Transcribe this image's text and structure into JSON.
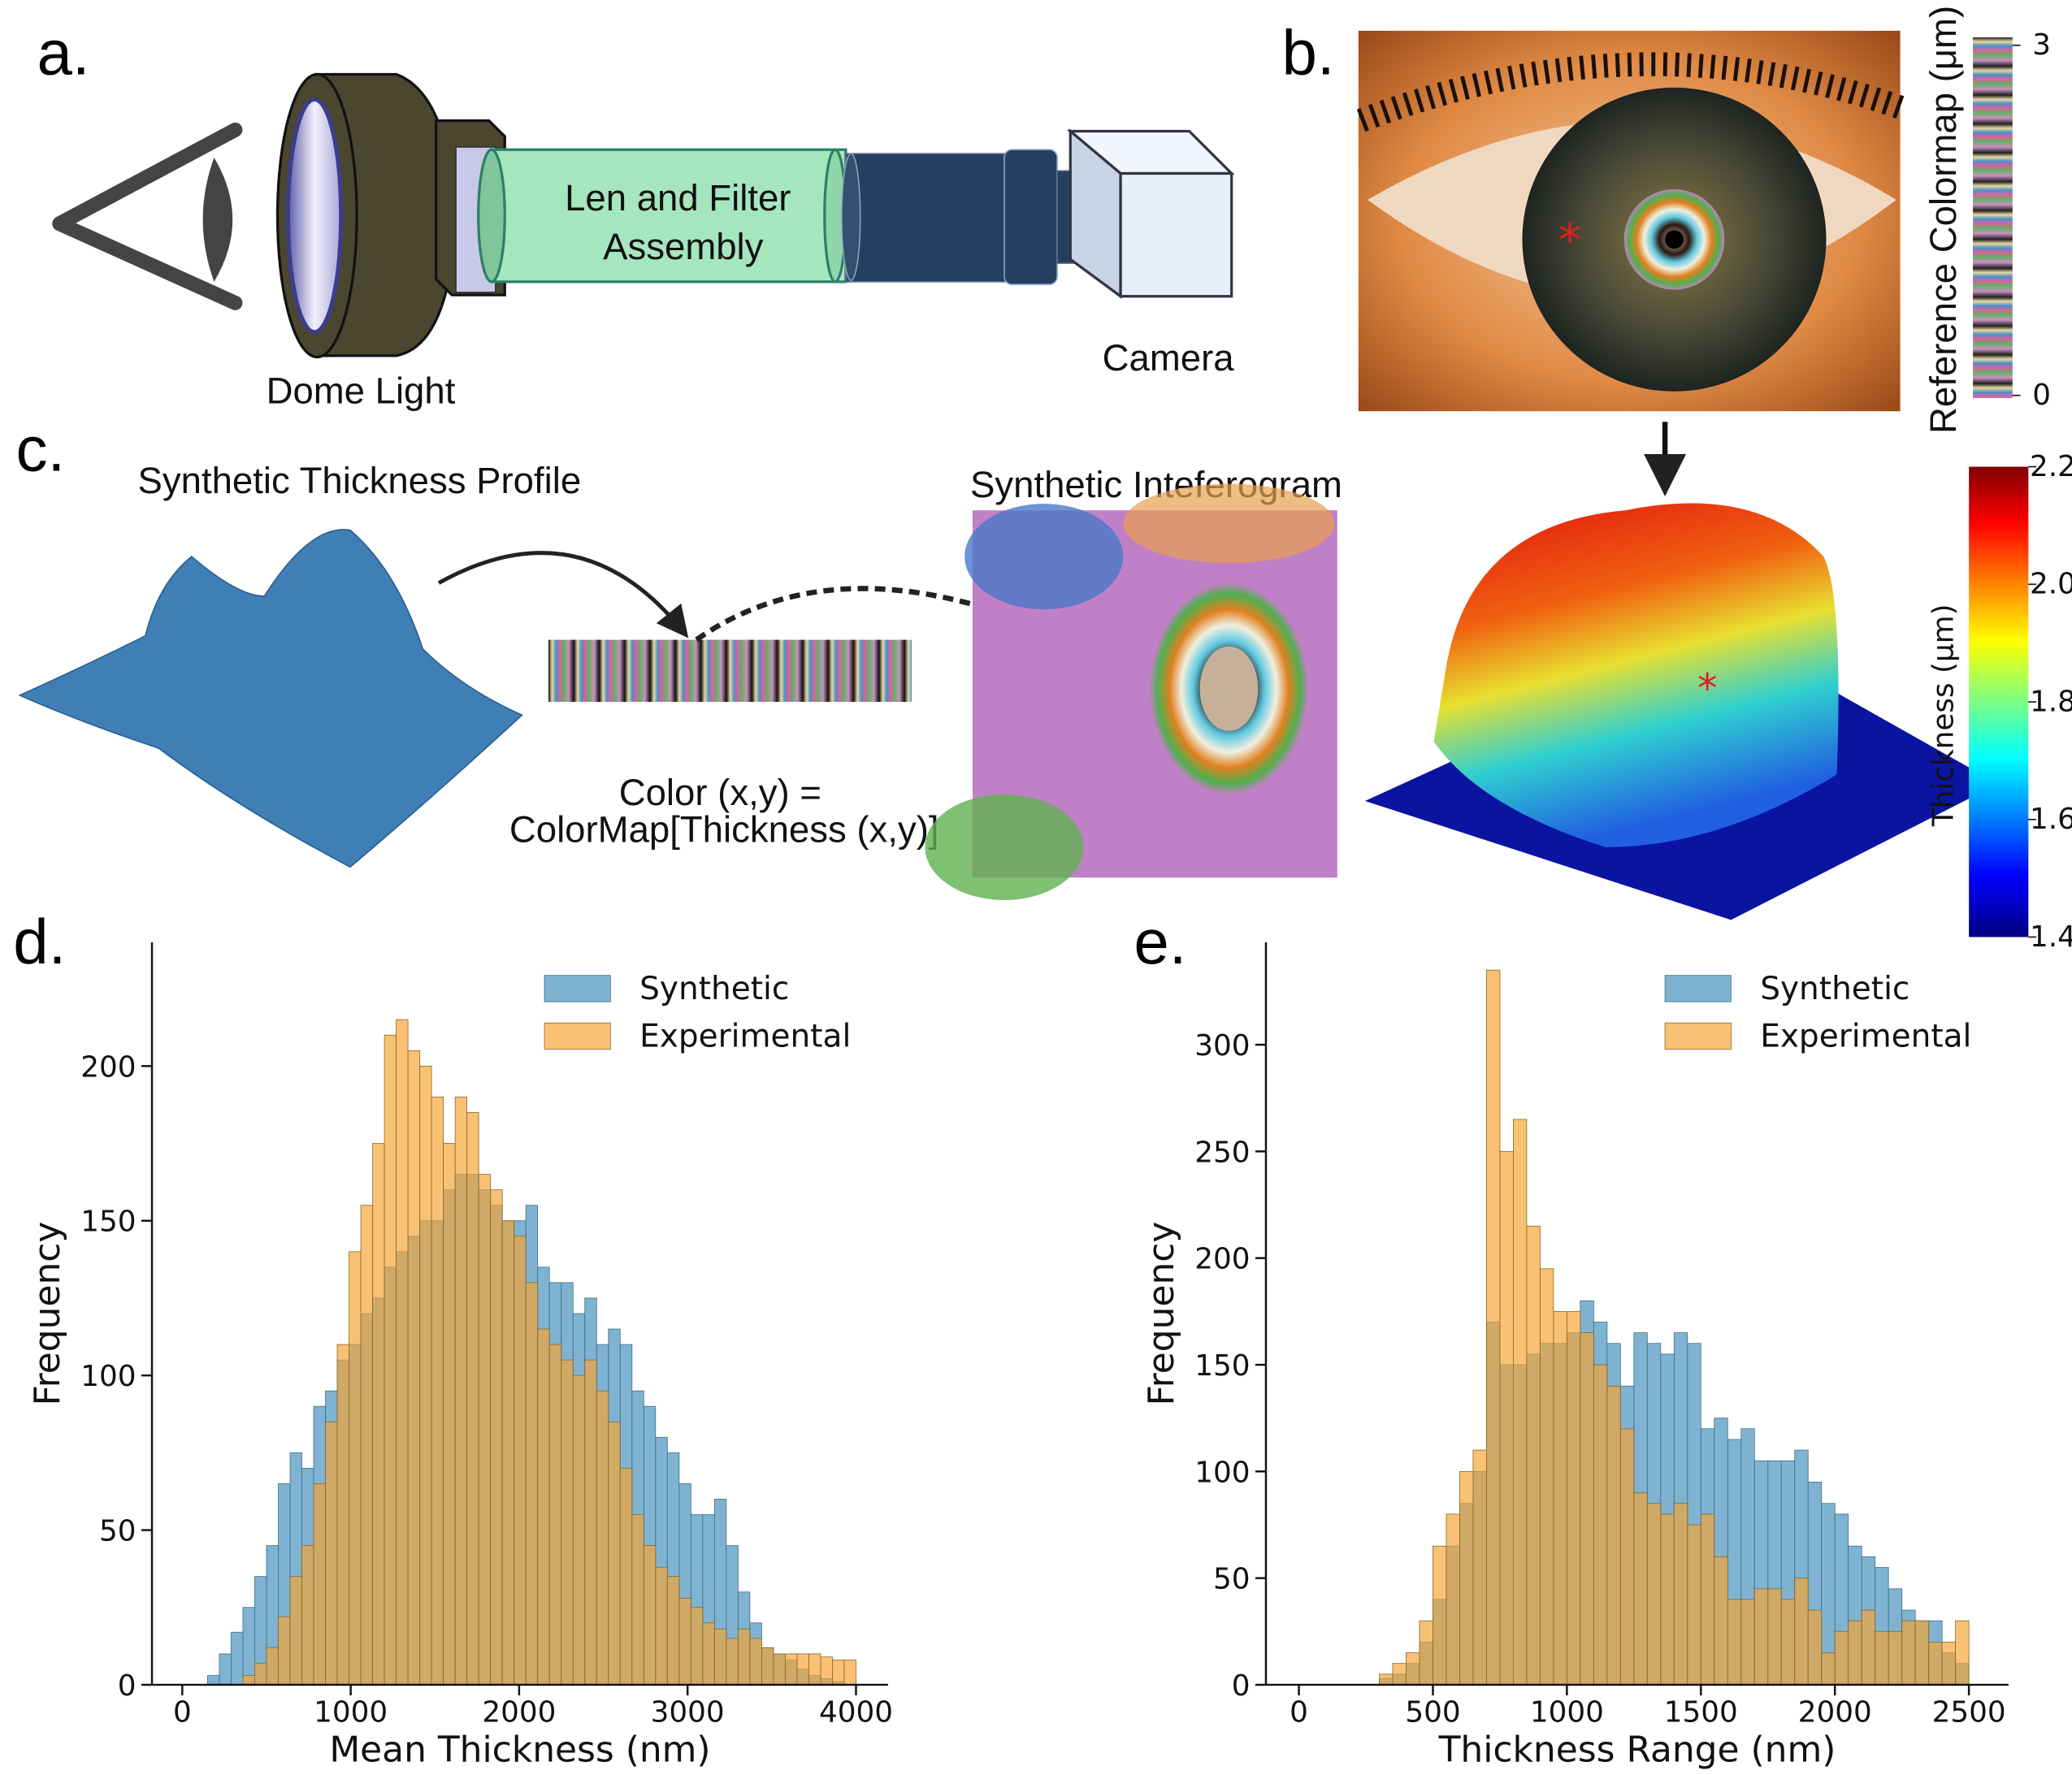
{
  "panels": {
    "a": "a.",
    "b": "b.",
    "c": "c.",
    "d": "d.",
    "e": "e."
  },
  "setup": {
    "filter_label": [
      "Len and Filter",
      "Assembly"
    ],
    "dome_light": "Dome Light",
    "camera": "Camera"
  },
  "reference_colormap": {
    "title": "Reference Colormap (μm)",
    "range": [
      0,
      3
    ],
    "ticks": [
      0,
      3
    ]
  },
  "synthesis": {
    "profile_title": "Synthetic Thickness Profile",
    "interferogram_title": "Synthetic Inteferogram",
    "formula": [
      "Color (x,y) =",
      "ColorMap[Thickness (x,y)]"
    ]
  },
  "thickness_colorbar": {
    "title": "Thickness (μm)",
    "range": [
      1.4,
      2.2
    ],
    "ticks": [
      1.4,
      1.6,
      1.8,
      {
        "value": 2,
        "label": "2.0"
      },
      2.2
    ]
  },
  "chart_data": [
    {
      "type": "histogram",
      "xlabel": "Mean Thickness (nm)",
      "ylabel": "Frequency",
      "bins": [
        150,
        220,
        290,
        360,
        430,
        500,
        570,
        640,
        710,
        780,
        850,
        920,
        990,
        1060,
        1130,
        1200,
        1270,
        1340,
        1410,
        1480,
        1550,
        1620,
        1690,
        1760,
        1830,
        1900,
        1970,
        2040,
        2110,
        2180,
        2250,
        2320,
        2390,
        2460,
        2530,
        2600,
        2670,
        2740,
        2810,
        2880,
        2950,
        3020,
        3090,
        3160,
        3230,
        3300,
        3370,
        3440,
        3510,
        3580,
        3650,
        3720,
        3790,
        3860,
        3930,
        4000
      ],
      "series": [
        {
          "name": "Synthetic",
          "color": "#5b9ec4",
          "values": [
            3,
            10,
            17,
            25,
            35,
            45,
            65,
            75,
            70,
            90,
            95,
            105,
            110,
            120,
            125,
            135,
            140,
            145,
            150,
            150,
            160,
            165,
            165,
            160,
            155,
            150,
            150,
            155,
            135,
            130,
            130,
            120,
            125,
            110,
            115,
            110,
            95,
            90,
            80,
            75,
            65,
            55,
            55,
            60,
            45,
            30,
            20,
            12,
            10,
            8,
            5,
            3,
            2,
            1,
            0
          ]
        },
        {
          "name": "Experimental",
          "color": "#f4a432",
          "values": [
            0,
            0,
            0,
            3,
            7,
            12,
            22,
            35,
            45,
            65,
            85,
            110,
            140,
            155,
            175,
            210,
            215,
            205,
            200,
            190,
            175,
            190,
            185,
            165,
            160,
            150,
            145,
            130,
            115,
            110,
            105,
            100,
            105,
            95,
            85,
            70,
            55,
            45,
            38,
            35,
            28,
            25,
            20,
            18,
            15,
            18,
            15,
            12,
            10,
            10,
            10,
            10,
            9,
            8,
            8
          ]
        }
      ],
      "xlim": [
        -180,
        4190
      ],
      "ylim": [
        0,
        240
      ],
      "xticks": [
        0,
        1000,
        2000,
        3000,
        4000
      ],
      "yticks": [
        0,
        50,
        100,
        150,
        200
      ],
      "legend": "upper right"
    },
    {
      "type": "histogram",
      "xlabel": "Thickness Range (nm)",
      "ylabel": "Frequency",
      "bins": [
        300,
        350,
        400,
        450,
        500,
        550,
        600,
        650,
        700,
        750,
        800,
        850,
        900,
        950,
        1000,
        1050,
        1100,
        1150,
        1200,
        1250,
        1300,
        1350,
        1400,
        1450,
        1500,
        1550,
        1600,
        1650,
        1700,
        1750,
        1800,
        1850,
        1900,
        1950,
        2000,
        2050,
        2100,
        2150,
        2200,
        2250,
        2300,
        2350,
        2400,
        2450,
        2500
      ],
      "series": [
        {
          "name": "Synthetic",
          "color": "#5b9ec4",
          "values": [
            3,
            5,
            10,
            20,
            40,
            65,
            85,
            100,
            170,
            150,
            150,
            155,
            160,
            160,
            165,
            180,
            170,
            160,
            140,
            165,
            160,
            155,
            165,
            160,
            120,
            125,
            115,
            120,
            105,
            105,
            105,
            110,
            95,
            85,
            80,
            65,
            60,
            55,
            45,
            35,
            30,
            30,
            15,
            10
          ]
        },
        {
          "name": "Experimental",
          "color": "#f4a432",
          "values": [
            5,
            10,
            15,
            30,
            65,
            80,
            100,
            110,
            335,
            250,
            265,
            215,
            195,
            175,
            175,
            165,
            150,
            140,
            120,
            90,
            85,
            80,
            85,
            75,
            80,
            60,
            40,
            40,
            45,
            45,
            40,
            50,
            35,
            15,
            25,
            30,
            35,
            25,
            25,
            30,
            30,
            20,
            20,
            30
          ]
        }
      ],
      "xlim": [
        -123,
        2648
      ],
      "ylim": [
        0,
        348
      ],
      "xticks": [
        0,
        500,
        1000,
        1500,
        2000,
        2500
      ],
      "yticks": [
        0,
        50,
        100,
        150,
        200,
        250,
        300
      ],
      "legend": "upper right"
    }
  ]
}
